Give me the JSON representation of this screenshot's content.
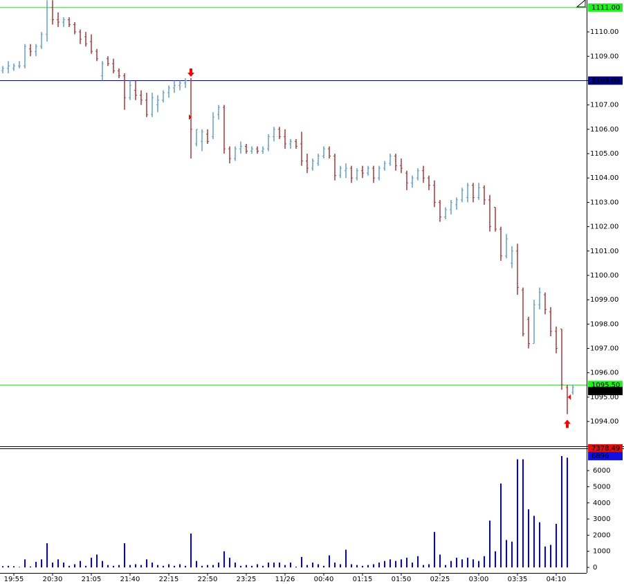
{
  "chart_data": [
    {
      "type": "ohlc",
      "categories": [
        null,
        null,
        "19:55",
        null,
        null,
        null,
        null,
        null,
        null,
        "20:30",
        null,
        null,
        null,
        null,
        null,
        null,
        "21:05",
        null,
        null,
        null,
        null,
        null,
        null,
        "21:40",
        null,
        null,
        null,
        null,
        null,
        null,
        "22:15",
        null,
        null,
        null,
        null,
        null,
        null,
        "22:50",
        null,
        null,
        null,
        null,
        null,
        null,
        "23:25",
        null,
        null,
        null,
        null,
        null,
        null,
        "11/26",
        null,
        null,
        null,
        null,
        null,
        null,
        "00:40",
        null,
        null,
        null,
        null,
        null,
        null,
        "01:15",
        null,
        null,
        null,
        null,
        null,
        null,
        "01:50",
        null,
        null,
        null,
        null,
        null,
        null,
        "02:25",
        null,
        null,
        null,
        null,
        null,
        null,
        "03:00",
        null,
        null,
        null,
        null,
        null,
        null,
        "03:35",
        null,
        null,
        null,
        null,
        null,
        null,
        "04:10",
        null,
        null,
        null
      ],
      "open": [
        1108.4,
        1108.5,
        1108.5,
        1108.6,
        1108.6,
        1109.3,
        1109.2,
        1109.4,
        1109.9,
        1111.0,
        1110.5,
        1110.4,
        1110.5,
        1110.3,
        1110.0,
        1109.8,
        1109.6,
        1109.2,
        1108.2,
        1108.9,
        1108.7,
        1108.4,
        1108.2,
        1107.3,
        1107.6,
        1107.4,
        1107.2,
        1106.6,
        1107.0,
        1107.2,
        1107.5,
        1107.7,
        1107.8,
        1107.9,
        1108.0,
        1105.4,
        1105.5,
        1105.8,
        1105.7,
        1106.6,
        1106.9,
        1105.2,
        1104.8,
        1105.2,
        1105.3,
        1105.1,
        1105.2,
        1105.1,
        1105.2,
        1105.7,
        1106.0,
        1105.7,
        1105.4,
        1105.5,
        1105.4,
        1104.7,
        1104.4,
        1104.6,
        1104.9,
        1105.2,
        1104.9,
        1104.1,
        1104.3,
        1104.4,
        1104.0,
        1104.3,
        1104.2,
        1104.4,
        1104.0,
        1104.4,
        1104.6,
        1104.9,
        1104.5,
        1104.2,
        1103.8,
        1104.0,
        1104.3,
        1104.0,
        1103.7,
        1103.0,
        1102.4,
        1102.7,
        1102.9,
        1103.1,
        1103.2,
        1103.7,
        1103.2,
        1103.6,
        1103.1,
        1102.8,
        1101.9,
        1100.8,
        1100.5,
        1101.0,
        1099.4,
        1098.2,
        1097.2,
        1098.8,
        1099.2,
        1098.5,
        1097.7,
        1097.8,
        1095.4,
        1095.2
      ],
      "high": [
        1108.6,
        1108.8,
        1108.7,
        1108.8,
        1109.5,
        1109.5,
        1109.5,
        1110.0,
        1111.3,
        1111.3,
        1110.8,
        1110.6,
        1110.6,
        1110.4,
        1110.1,
        1110.0,
        1109.9,
        1109.3,
        1108.8,
        1109.0,
        1108.9,
        1108.5,
        1108.3,
        1108.0,
        1108.0,
        1107.6,
        1107.5,
        1107.5,
        1107.4,
        1107.6,
        1107.8,
        1108.0,
        1108.0,
        1108.1,
        1108.1,
        1106.0,
        1106.0,
        1106.0,
        1106.7,
        1107.0,
        1107.0,
        1105.3,
        1105.3,
        1105.5,
        1105.4,
        1105.3,
        1105.3,
        1105.3,
        1105.8,
        1106.1,
        1106.1,
        1106.0,
        1105.6,
        1105.6,
        1105.9,
        1105.0,
        1104.8,
        1105.0,
        1105.3,
        1105.3,
        1105.0,
        1104.5,
        1104.6,
        1104.5,
        1104.4,
        1104.5,
        1104.5,
        1104.5,
        1104.5,
        1104.7,
        1105.0,
        1105.0,
        1104.8,
        1104.3,
        1104.1,
        1104.4,
        1104.5,
        1104.1,
        1103.9,
        1103.1,
        1102.8,
        1103.1,
        1103.2,
        1103.6,
        1103.8,
        1103.8,
        1103.8,
        1103.7,
        1103.3,
        1102.8,
        1102.0,
        1101.7,
        1101.2,
        1101.3,
        1099.5,
        1098.3,
        1099.0,
        1099.5,
        1099.3,
        1098.7,
        1097.9,
        1097.8,
        1095.5,
        1095.5
      ],
      "low": [
        1108.3,
        1108.3,
        1108.4,
        1108.5,
        1108.5,
        1109.0,
        1109.0,
        1109.3,
        1109.6,
        1110.3,
        1110.2,
        1110.2,
        1110.2,
        1109.9,
        1109.5,
        1109.4,
        1109.1,
        1108.8,
        1108.0,
        1108.6,
        1108.3,
        1108.1,
        1106.8,
        1107.2,
        1107.2,
        1107.0,
        1106.5,
        1106.5,
        1106.7,
        1107.1,
        1107.3,
        1107.5,
        1107.6,
        1107.7,
        1104.8,
        1105.3,
        1105.1,
        1105.4,
        1105.6,
        1106.4,
        1105.0,
        1104.6,
        1104.7,
        1105.0,
        1105.0,
        1105.0,
        1105.0,
        1105.0,
        1105.1,
        1105.5,
        1105.6,
        1105.2,
        1105.2,
        1105.2,
        1104.5,
        1104.2,
        1104.3,
        1104.5,
        1104.8,
        1104.8,
        1103.9,
        1104.0,
        1104.0,
        1103.8,
        1103.9,
        1104.0,
        1104.1,
        1103.8,
        1103.9,
        1104.3,
        1104.5,
        1104.3,
        1104.2,
        1103.5,
        1103.6,
        1103.9,
        1103.8,
        1103.5,
        1102.8,
        1102.2,
        1102.3,
        1102.5,
        1102.7,
        1103.0,
        1103.0,
        1103.0,
        1103.1,
        1102.9,
        1101.8,
        1101.8,
        1100.6,
        1100.7,
        1100.3,
        1099.2,
        1097.5,
        1097.0,
        1097.2,
        1098.6,
        1098.4,
        1097.5,
        1096.8,
        1095.3,
        1094.3,
        1095.1
      ],
      "close": [
        1108.5,
        1108.6,
        1108.6,
        1108.6,
        1109.4,
        1109.2,
        1109.4,
        1109.9,
        1111.0,
        1110.5,
        1110.4,
        1110.5,
        1110.3,
        1110.0,
        1109.7,
        1109.5,
        1109.2,
        1108.9,
        1108.7,
        1108.7,
        1108.4,
        1108.2,
        1107.3,
        1107.8,
        1107.4,
        1107.2,
        1106.6,
        1107.3,
        1107.2,
        1107.5,
        1107.7,
        1107.8,
        1107.9,
        1108.0,
        1106.0,
        1106.0,
        1105.9,
        1105.5,
        1106.5,
        1106.9,
        1105.2,
        1104.8,
        1105.2,
        1105.3,
        1105.1,
        1105.2,
        1105.1,
        1105.2,
        1105.7,
        1106.0,
        1105.7,
        1105.4,
        1105.5,
        1105.3,
        1104.7,
        1104.4,
        1104.7,
        1104.9,
        1105.2,
        1104.9,
        1104.1,
        1104.4,
        1104.4,
        1104.0,
        1104.3,
        1104.2,
        1104.4,
        1104.0,
        1104.4,
        1104.6,
        1104.9,
        1104.5,
        1104.4,
        1103.8,
        1104.0,
        1104.3,
        1104.0,
        1103.7,
        1103.0,
        1102.4,
        1102.7,
        1103.0,
        1103.1,
        1103.5,
        1103.7,
        1103.2,
        1103.6,
        1103.1,
        1102.0,
        1101.9,
        1100.8,
        1101.5,
        1101.0,
        1099.5,
        1097.6,
        1097.2,
        1098.8,
        1099.3,
        1098.6,
        1097.7,
        1097.0,
        1095.5,
        1095.0,
        1095.4
      ],
      "up_color": "#5f9ec8",
      "down_color": "#a0383c",
      "ylim": [
        1092.98,
        1111.31
      ],
      "yticks": [
        {
          "value": 1094,
          "label": "1094.00"
        },
        {
          "value": 1095,
          "label": "1095.00"
        },
        {
          "value": 1096,
          "label": "1096.00"
        },
        {
          "value": 1097,
          "label": "1097.00"
        },
        {
          "value": 1098,
          "label": "1098.00"
        },
        {
          "value": 1099,
          "label": "1099.00"
        },
        {
          "value": 1100,
          "label": "1100.00"
        },
        {
          "value": 1101,
          "label": "1101.00"
        },
        {
          "value": 1102,
          "label": "1102.00"
        },
        {
          "value": 1103,
          "label": "1103.00"
        },
        {
          "value": 1104,
          "label": "1104.00"
        },
        {
          "value": 1105,
          "label": "1105.00"
        },
        {
          "value": 1106,
          "label": "1106.00"
        },
        {
          "value": 1107,
          "label": "1107.00"
        },
        {
          "value": 1108,
          "label": "1108.00"
        },
        {
          "value": 1109,
          "label": "1109.00"
        },
        {
          "value": 1110,
          "label": "1110.00"
        }
      ],
      "lines": [
        {
          "value": 1111,
          "label": "1111.00",
          "color": "#33cc33",
          "tag_color": "#22ee22",
          "text_color": "#000000"
        },
        {
          "value": 1108,
          "label": "1108.00",
          "color": "#000080",
          "tag_color": "#000080",
          "text_color": "#ffffff"
        },
        {
          "value": 1095.5,
          "label": "1095.50",
          "color": "#33cc33",
          "tag_color": "#22ee22",
          "text_color": "#000000"
        }
      ],
      "tags": [
        {
          "value": 1095.25,
          "color": "#000000",
          "text_color": "#ffffff"
        }
      ]
    },
    {
      "type": "bar",
      "values": [
        80,
        100,
        80,
        30,
        500,
        60,
        350,
        500,
        1500,
        300,
        500,
        300,
        100,
        200,
        400,
        100,
        600,
        800,
        400,
        150,
        100,
        150,
        1500,
        150,
        200,
        150,
        500,
        300,
        150,
        100,
        200,
        100,
        200,
        100,
        2100,
        400,
        100,
        150,
        150,
        300,
        1000,
        600,
        300,
        100,
        150,
        100,
        200,
        100,
        300,
        300,
        300,
        150,
        300,
        50,
        650,
        150,
        300,
        200,
        100,
        750,
        300,
        200,
        1100,
        200,
        150,
        100,
        150,
        200,
        300,
        400,
        500,
        400,
        500,
        600,
        300,
        700,
        150,
        200,
        2200,
        800,
        150,
        400,
        600,
        500,
        600,
        500,
        400,
        700,
        2900,
        1000,
        5200,
        1700,
        1600,
        6700,
        6700,
        3600,
        3200,
        2800,
        1300,
        1400,
        2700,
        6900,
        6800,
        null
      ],
      "color": "#0000e6",
      "ylim": [
        -340,
        7290
      ],
      "yticks": [
        0,
        1000,
        2000,
        3000,
        4000,
        5000,
        6000
      ],
      "tags": [
        {
          "value": 7378.49,
          "color": "#e01010",
          "text_color": "#ffffff"
        },
        {
          "value": 6896,
          "color": "#1010e0",
          "text_color": "#ffffff"
        }
      ]
    }
  ]
}
